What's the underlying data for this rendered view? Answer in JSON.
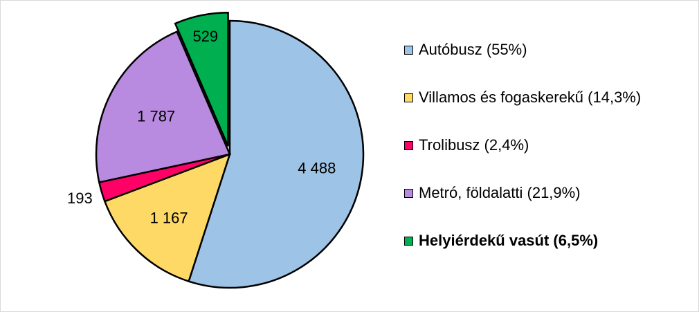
{
  "chart_data": {
    "type": "pie",
    "title": "",
    "slices": [
      {
        "label": "Autóbusz (55%)",
        "value": 4488,
        "display": "4 488",
        "color": "#9dc3e6",
        "exploded": false,
        "bold": false
      },
      {
        "label": "Villamos és fogaskerekű (14,3%)",
        "value": 1167,
        "display": "1 167",
        "color": "#ffd966",
        "exploded": false,
        "bold": false
      },
      {
        "label": "Trolibusz (2,4%)",
        "value": 193,
        "display": "193",
        "color": "#ff0066",
        "exploded": false,
        "bold": false
      },
      {
        "label": "Metró, földalatti (21,9%)",
        "value": 1787,
        "display": "1 787",
        "color": "#b88ae0",
        "exploded": false,
        "bold": false
      },
      {
        "label": "Helyiérdekű vasút (6,5%)",
        "value": 529,
        "display": "529",
        "color": "#00b050",
        "exploded": true,
        "bold": true
      }
    ],
    "start_angle_deg": 0,
    "direction": "clockwise",
    "legend_position": "right"
  }
}
